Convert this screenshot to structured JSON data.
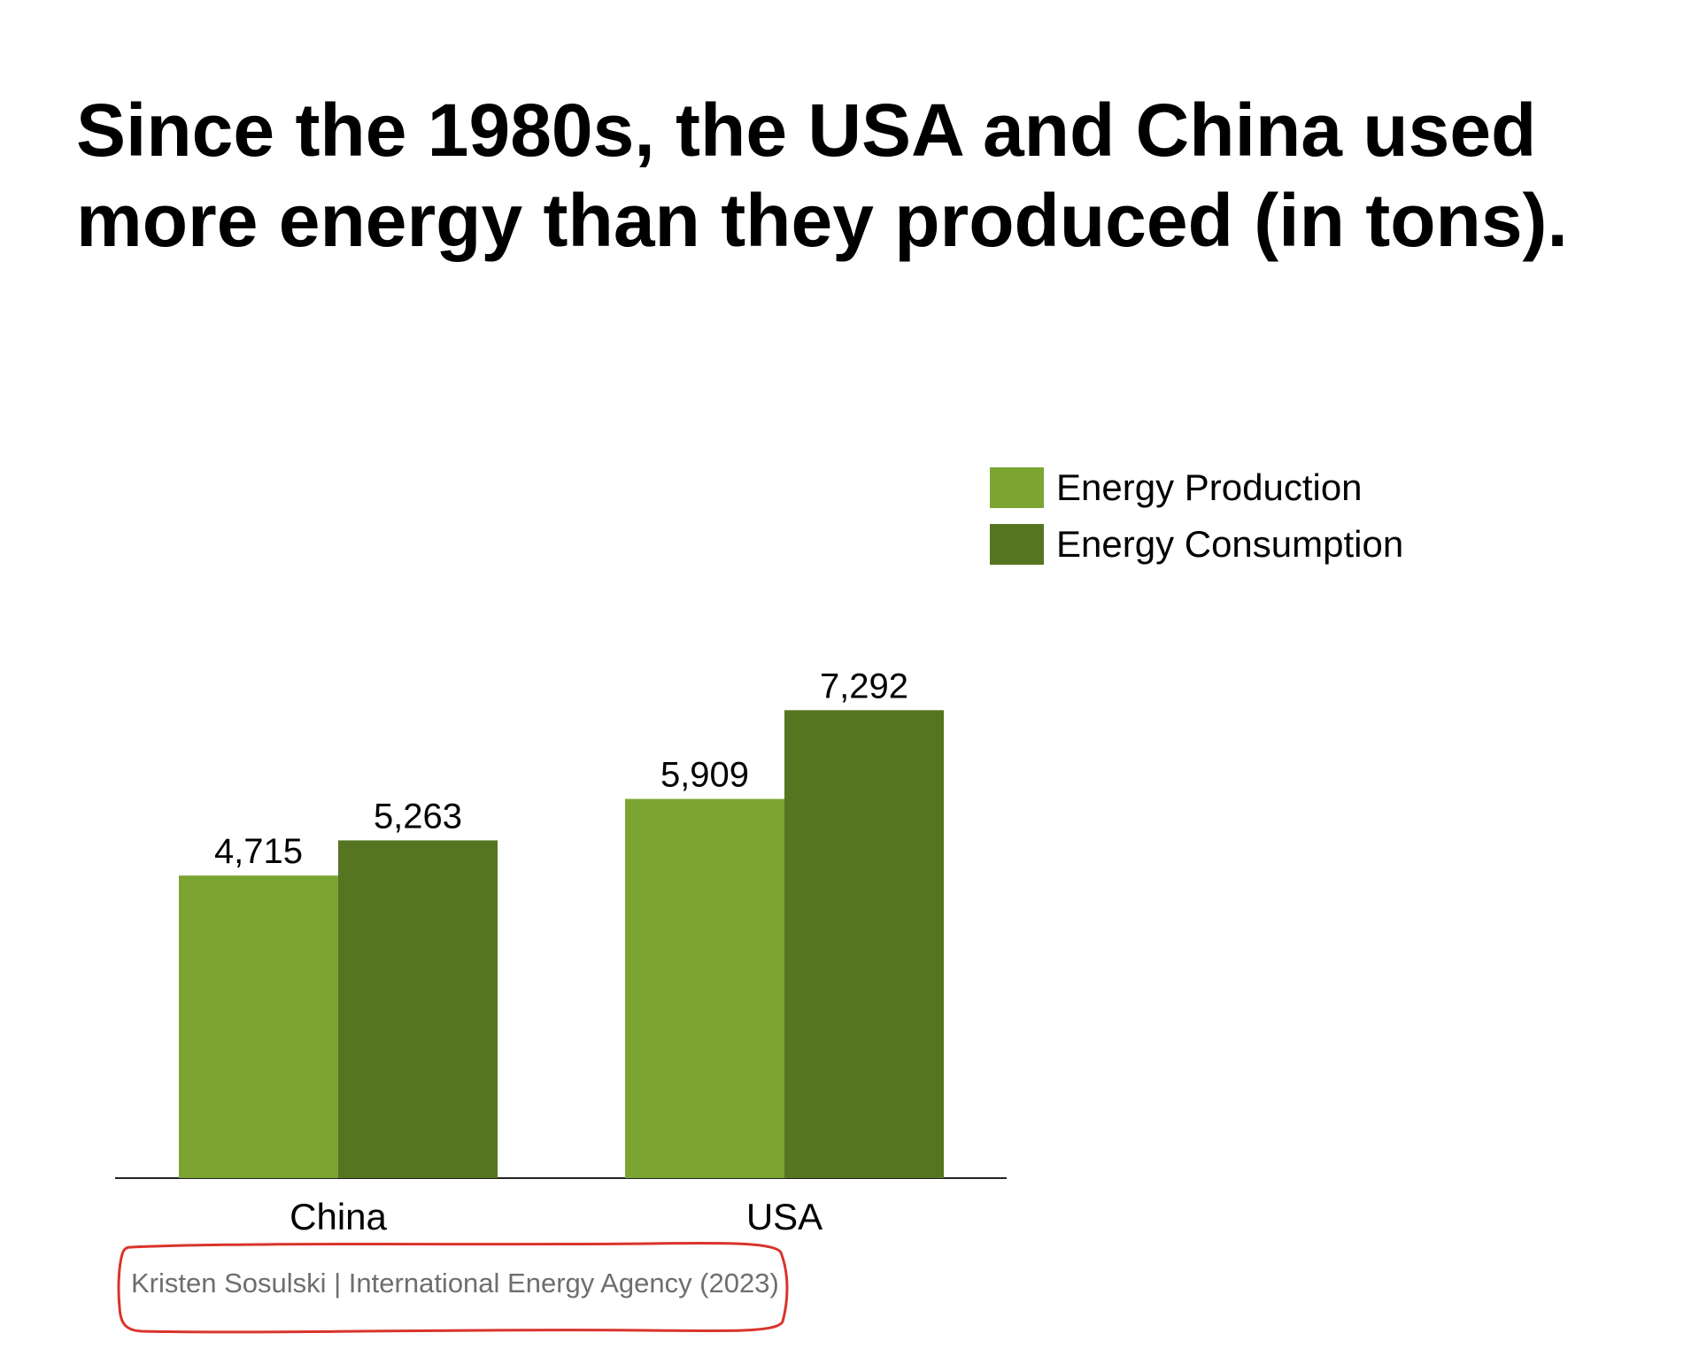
{
  "title": "Since the 1980s, the USA and China used more energy than they produced (in tons).",
  "source": "Kristen Sosulski | International Energy Agency (2023)",
  "colors": {
    "production": "#7ba433",
    "consumption": "#567520",
    "annotation": "#d9342b"
  },
  "chart_data": {
    "type": "bar",
    "categories": [
      "China",
      "USA"
    ],
    "series": [
      {
        "name": "Energy Production",
        "values": [
          4715,
          5909
        ],
        "labels": [
          "4,715",
          "5,909"
        ]
      },
      {
        "name": "Energy Consumption",
        "values": [
          5263,
          7292
        ],
        "labels": [
          "5,263",
          "7,292"
        ]
      }
    ],
    "ylim": [
      0,
      8000
    ],
    "grid": false,
    "legend": "right"
  }
}
